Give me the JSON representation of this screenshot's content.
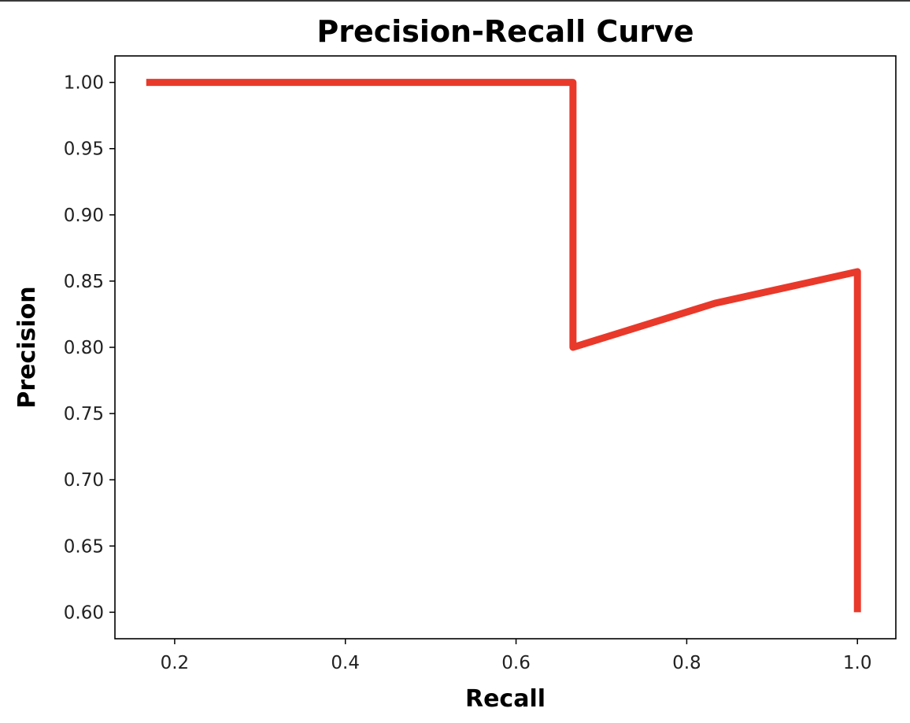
{
  "chart_data": {
    "type": "line",
    "title": "Precision-Recall Curve",
    "xlabel": "Recall",
    "ylabel": "Precision",
    "xlim": [
      0.13,
      1.045
    ],
    "ylim": [
      0.58,
      1.02
    ],
    "x_ticks": [
      0.2,
      0.4,
      0.6,
      0.8,
      1.0
    ],
    "x_tick_labels": [
      "0.2",
      "0.4",
      "0.6",
      "0.8",
      "1.0"
    ],
    "y_ticks": [
      0.6,
      0.65,
      0.7,
      0.75,
      0.8,
      0.85,
      0.9,
      0.95,
      1.0
    ],
    "y_tick_labels": [
      "0.60",
      "0.65",
      "0.70",
      "0.75",
      "0.80",
      "0.85",
      "0.90",
      "0.95",
      "1.00"
    ],
    "grid": false,
    "series": [
      {
        "color": "#e8392b",
        "x": [
          0.1667,
          0.6667,
          0.6667,
          0.8333,
          1.0,
          1.0
        ],
        "y": [
          1.0,
          1.0,
          0.8,
          0.8333,
          0.8571,
          0.6
        ]
      }
    ]
  }
}
